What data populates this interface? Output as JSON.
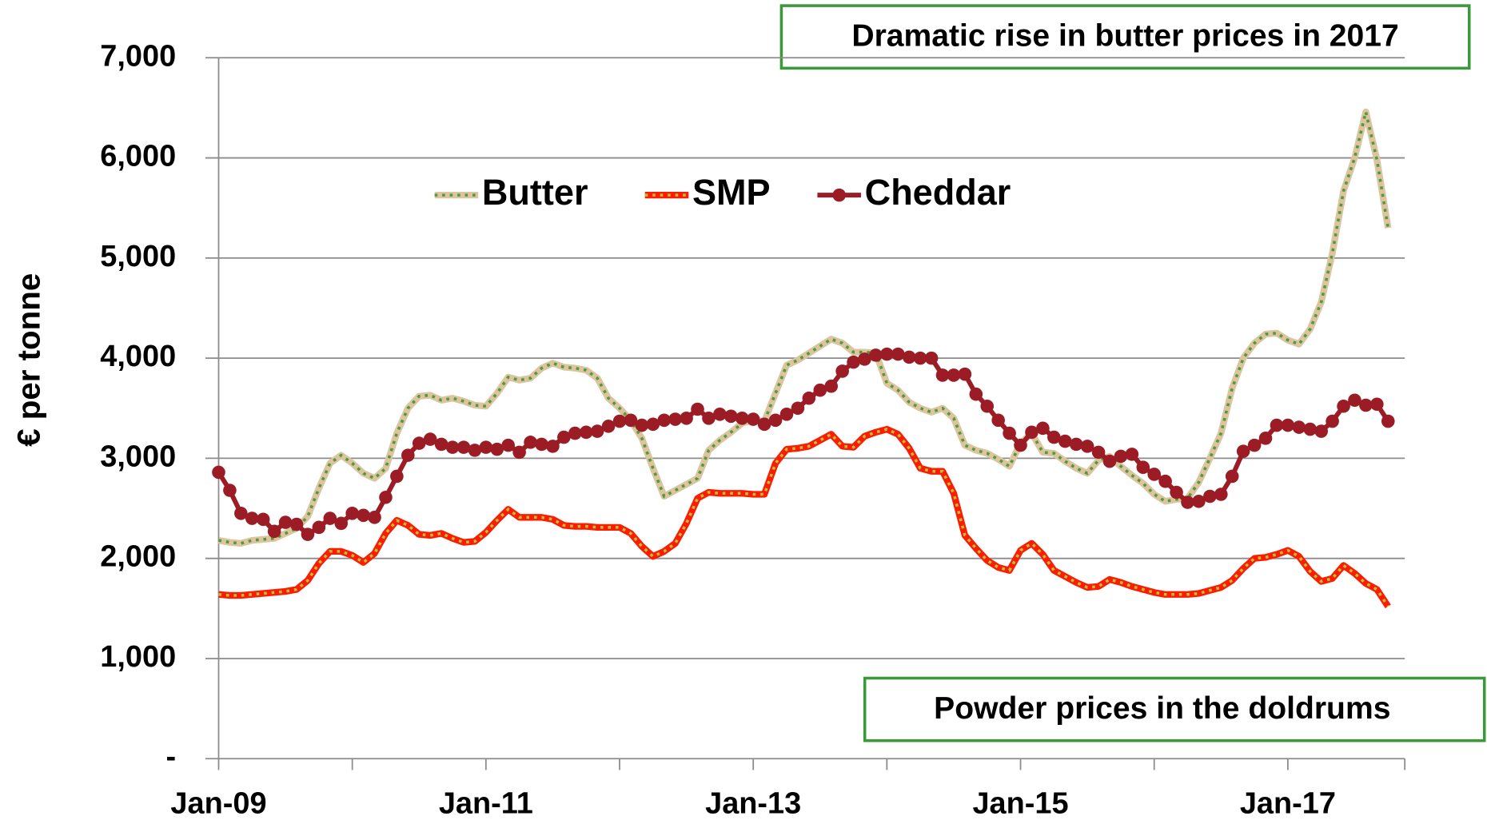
{
  "chart_data": {
    "type": "line",
    "y_axis_label": "€ per tonne",
    "annotations": [
      "Dramatic rise in butter prices in 2017",
      "Powder prices in the doldrums"
    ],
    "categories": [
      "Jan-09",
      null,
      null,
      null,
      null,
      null,
      null,
      null,
      null,
      null,
      null,
      null,
      null,
      null,
      null,
      null,
      null,
      null,
      null,
      null,
      null,
      null,
      null,
      null,
      "Jan-11",
      null,
      null,
      null,
      null,
      null,
      null,
      null,
      null,
      null,
      null,
      null,
      null,
      null,
      null,
      null,
      null,
      null,
      null,
      null,
      null,
      null,
      null,
      null,
      "Jan-13",
      null,
      null,
      null,
      null,
      null,
      null,
      null,
      null,
      null,
      null,
      null,
      null,
      null,
      null,
      null,
      null,
      null,
      null,
      null,
      null,
      null,
      null,
      null,
      "Jan-15",
      null,
      null,
      null,
      null,
      null,
      null,
      null,
      null,
      null,
      null,
      null,
      null,
      null,
      null,
      null,
      null,
      null,
      null,
      null,
      null,
      null,
      null,
      null,
      "Jan-17",
      null,
      null,
      null,
      null,
      null,
      null,
      null,
      null,
      null
    ],
    "series": [
      {
        "name": "Butter",
        "color": "#dcc49e",
        "dash_color": "#4e9a3c",
        "marker": false,
        "values": [
          2180,
          2160,
          2150,
          2180,
          2190,
          2200,
          2250,
          2300,
          2420,
          2700,
          2950,
          3030,
          2950,
          2850,
          2800,
          2900,
          3250,
          3500,
          3620,
          3630,
          3580,
          3600,
          3570,
          3530,
          3520,
          3650,
          3810,
          3780,
          3800,
          3900,
          3950,
          3910,
          3900,
          3880,
          3800,
          3600,
          3500,
          3380,
          3200,
          2900,
          2620,
          2680,
          2740,
          2800,
          3080,
          3180,
          3260,
          3350,
          3380,
          3370,
          3650,
          3930,
          3980,
          4050,
          4120,
          4190,
          4150,
          4060,
          4060,
          4050,
          3750,
          3680,
          3560,
          3500,
          3460,
          3500,
          3400,
          3130,
          3080,
          3050,
          2990,
          2920,
          3150,
          3250,
          3060,
          3050,
          2970,
          2900,
          2850,
          2980,
          3020,
          2920,
          2830,
          2750,
          2640,
          2570,
          2590,
          2600,
          2760,
          3000,
          3250,
          3700,
          4000,
          4150,
          4240,
          4250,
          4180,
          4140,
          4290,
          4560,
          5050,
          5670,
          6000,
          6460,
          5980,
          5300
        ]
      },
      {
        "name": "SMP",
        "color": "#ff1a00",
        "dash_color": "#a8c83a",
        "marker": false,
        "values": [
          1640,
          1630,
          1630,
          1640,
          1650,
          1660,
          1670,
          1690,
          1780,
          1950,
          2070,
          2070,
          2030,
          1960,
          2050,
          2250,
          2380,
          2330,
          2240,
          2230,
          2250,
          2200,
          2160,
          2170,
          2260,
          2380,
          2490,
          2410,
          2410,
          2410,
          2390,
          2330,
          2320,
          2320,
          2310,
          2310,
          2310,
          2250,
          2120,
          2020,
          2070,
          2150,
          2350,
          2600,
          2660,
          2650,
          2650,
          2650,
          2640,
          2640,
          2950,
          3090,
          3100,
          3120,
          3180,
          3240,
          3120,
          3110,
          3220,
          3260,
          3290,
          3240,
          3100,
          2900,
          2870,
          2870,
          2650,
          2230,
          2100,
          1980,
          1910,
          1880,
          2080,
          2150,
          2040,
          1880,
          1820,
          1760,
          1710,
          1720,
          1790,
          1760,
          1720,
          1690,
          1660,
          1640,
          1640,
          1640,
          1650,
          1680,
          1710,
          1780,
          1900,
          2000,
          2010,
          2040,
          2080,
          2020,
          1870,
          1770,
          1800,
          1930,
          1850,
          1750,
          1690,
          1520
        ]
      },
      {
        "name": "Cheddar",
        "color": "#9b1c24",
        "marker": true,
        "values": [
          2860,
          2680,
          2450,
          2400,
          2390,
          2270,
          2360,
          2340,
          2240,
          2310,
          2400,
          2350,
          2450,
          2430,
          2410,
          2610,
          2820,
          3030,
          3150,
          3190,
          3140,
          3110,
          3110,
          3080,
          3110,
          3090,
          3130,
          3060,
          3160,
          3140,
          3120,
          3210,
          3250,
          3260,
          3270,
          3320,
          3370,
          3380,
          3330,
          3340,
          3380,
          3390,
          3400,
          3490,
          3400,
          3440,
          3420,
          3400,
          3390,
          3340,
          3380,
          3440,
          3500,
          3600,
          3680,
          3720,
          3870,
          3960,
          3990,
          4030,
          4040,
          4040,
          4010,
          4000,
          4000,
          3830,
          3830,
          3840,
          3640,
          3520,
          3380,
          3250,
          3130,
          3260,
          3300,
          3210,
          3170,
          3140,
          3120,
          3060,
          2970,
          3020,
          3040,
          2910,
          2840,
          2770,
          2660,
          2560,
          2570,
          2620,
          2640,
          2820,
          3070,
          3130,
          3200,
          3330,
          3330,
          3310,
          3290,
          3270,
          3370,
          3520,
          3580,
          3530,
          3540,
          3370
        ]
      }
    ],
    "ylim": [
      0,
      7000
    ],
    "yticks": [
      {
        "value": 0,
        "label": "-"
      },
      {
        "value": 1000,
        "label": "1,000"
      },
      {
        "value": 2000,
        "label": "2,000"
      },
      {
        "value": 3000,
        "label": "3,000"
      },
      {
        "value": 4000,
        "label": "4,000"
      },
      {
        "value": 5000,
        "label": "5,000"
      },
      {
        "value": 6000,
        "label": "6,000"
      },
      {
        "value": 7000,
        "label": "7,000"
      }
    ],
    "grid": true,
    "legend": "top"
  }
}
